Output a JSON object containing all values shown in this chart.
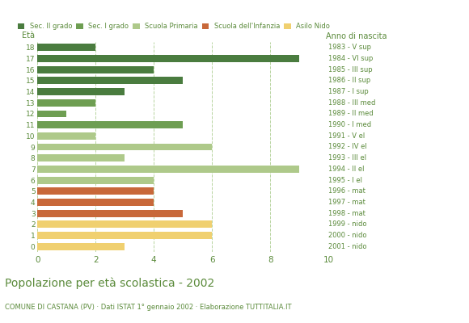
{
  "ages": [
    18,
    17,
    16,
    15,
    14,
    13,
    12,
    11,
    10,
    9,
    8,
    7,
    6,
    5,
    4,
    3,
    2,
    1,
    0
  ],
  "values": [
    2,
    9,
    4,
    5,
    3,
    2,
    1,
    5,
    2,
    6,
    3,
    9,
    4,
    4,
    4,
    5,
    6,
    6,
    3
  ],
  "colors": [
    "#4a7c3f",
    "#4a7c3f",
    "#4a7c3f",
    "#4a7c3f",
    "#4a7c3f",
    "#6e9e52",
    "#6e9e52",
    "#6e9e52",
    "#aec98a",
    "#aec98a",
    "#aec98a",
    "#aec98a",
    "#aec98a",
    "#c8683a",
    "#c8683a",
    "#c8683a",
    "#f0d070",
    "#f0d070",
    "#f0d070"
  ],
  "right_labels": [
    "1983 - V sup",
    "1984 - VI sup",
    "1985 - III sup",
    "1986 - II sup",
    "1987 - I sup",
    "1988 - III med",
    "1989 - II med",
    "1990 - I med",
    "1991 - V el",
    "1992 - IV el",
    "1993 - III el",
    "1994 - II el",
    "1995 - I el",
    "1996 - mat",
    "1997 - mat",
    "1998 - mat",
    "1999 - nido",
    "2000 - nido",
    "2001 - nido"
  ],
  "legend_labels": [
    "Sec. II grado",
    "Sec. I grado",
    "Scuola Primaria",
    "Scuola dell'Infanzia",
    "Asilo Nido"
  ],
  "legend_colors": [
    "#4a7c3f",
    "#6e9e52",
    "#aec98a",
    "#c8683a",
    "#f0d070"
  ],
  "title": "Popolazione per età scolastica - 2002",
  "subtitle": "COMUNE DI CASTANA (PV) · Dati ISTAT 1° gennaio 2002 · Elaborazione TUTTITALIA.IT",
  "ylabel_left": "Età",
  "ylabel_right": "Anno di nascita",
  "xlim": [
    0,
    10
  ],
  "xticks": [
    0,
    2,
    4,
    6,
    8,
    10
  ],
  "grid_color": "#b8d4a0",
  "background_color": "#ffffff",
  "text_color": "#5a8a3a",
  "bar_height": 0.65
}
